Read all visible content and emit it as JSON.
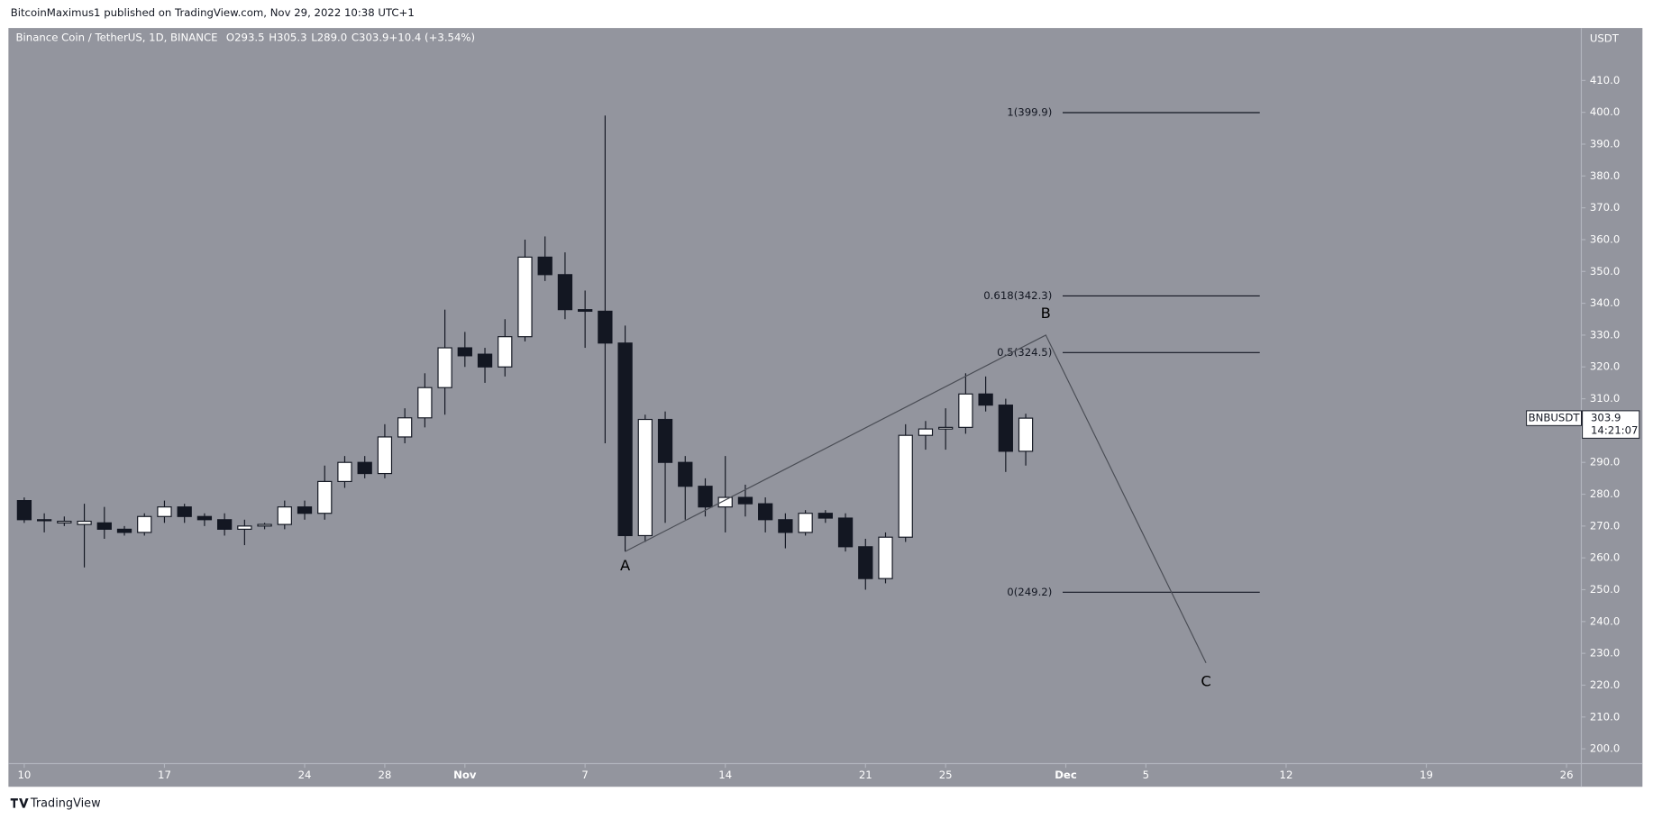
{
  "header": {
    "published": "BitcoinMaximus1 published on TradingView.com, Nov 29, 2022 10:38 UTC+1"
  },
  "footer": {
    "brand": "TradingView"
  },
  "chart_data": {
    "type": "candlestick",
    "title": "Binance Coin / TetherUS, 1D, BINANCE",
    "ohlc_legend": [
      {
        "key": "O",
        "value": "293.5"
      },
      {
        "key": "H",
        "value": "305.3"
      },
      {
        "key": "L",
        "value": "289.0"
      },
      {
        "key": "C",
        "value": "303.9"
      },
      {
        "key": "",
        "value": "+10.4 (+3.54%)"
      }
    ],
    "y_unit": "USDT",
    "up_color": "#ffffff",
    "down_color": "#131722",
    "wick_color": "#131722",
    "background": "#93959e",
    "x": [
      "2022-10-10",
      "2022-10-11",
      "2022-10-12",
      "2022-10-13",
      "2022-10-14",
      "2022-10-15",
      "2022-10-16",
      "2022-10-17",
      "2022-10-18",
      "2022-10-19",
      "2022-10-20",
      "2022-10-21",
      "2022-10-22",
      "2022-10-23",
      "2022-10-24",
      "2022-10-25",
      "2022-10-26",
      "2022-10-27",
      "2022-10-28",
      "2022-10-29",
      "2022-10-30",
      "2022-10-31",
      "2022-11-01",
      "2022-11-02",
      "2022-11-03",
      "2022-11-04",
      "2022-11-05",
      "2022-11-06",
      "2022-11-07",
      "2022-11-08",
      "2022-11-09",
      "2022-11-10",
      "2022-11-11",
      "2022-11-12",
      "2022-11-13",
      "2022-11-14",
      "2022-11-15",
      "2022-11-16",
      "2022-11-17",
      "2022-11-18",
      "2022-11-19",
      "2022-11-20",
      "2022-11-21",
      "2022-11-22",
      "2022-11-23",
      "2022-11-24",
      "2022-11-25",
      "2022-11-26",
      "2022-11-27",
      "2022-11-28",
      "2022-11-29"
    ],
    "open": [
      278,
      272,
      271,
      270.5,
      271,
      269,
      268,
      273,
      276,
      273,
      272,
      269,
      270,
      270.5,
      276,
      274,
      284,
      290,
      286.5,
      298,
      304,
      313.5,
      326,
      324,
      320,
      329.5,
      354.5,
      349,
      338,
      337.5,
      327.5,
      267,
      303.5,
      290,
      282.5,
      276,
      279,
      277,
      272,
      268,
      274,
      272.5,
      263.5,
      253.5,
      266.5,
      298.5,
      300.5,
      301,
      311.5,
      308,
      293.5
    ],
    "high": [
      279,
      274,
      273,
      277,
      276,
      270,
      274,
      278,
      277,
      274,
      274,
      272,
      271,
      278,
      278,
      289,
      292,
      292,
      302,
      307,
      318,
      338,
      331,
      326,
      335,
      360,
      361,
      356,
      344,
      399,
      333,
      305,
      306,
      292,
      285,
      292,
      283,
      279,
      274,
      275,
      275,
      274,
      266,
      268,
      302,
      303,
      307,
      318,
      317,
      310,
      305.3
    ],
    "low": [
      271,
      268,
      270,
      257,
      266,
      267,
      267,
      271,
      271,
      270,
      267,
      264,
      269,
      269,
      272,
      272,
      282,
      285,
      285,
      296,
      301,
      305,
      320,
      315,
      317,
      328,
      347,
      335,
      326,
      296,
      262,
      265,
      271,
      272,
      273,
      268,
      273,
      268,
      263,
      267,
      271,
      262,
      250,
      252,
      265,
      294,
      294,
      299,
      306,
      287,
      289.0
    ],
    "close": [
      272,
      272,
      271.5,
      271.5,
      269,
      268,
      273,
      276,
      273,
      272,
      269,
      270,
      270.5,
      276,
      274,
      284,
      290,
      286.5,
      298,
      304,
      313.5,
      326,
      323.5,
      320,
      329.5,
      354.5,
      349,
      338,
      337.5,
      327.5,
      267,
      303.5,
      290,
      282.5,
      276,
      279,
      277,
      272,
      268,
      274,
      272.5,
      263.5,
      253.5,
      266.5,
      298.5,
      300.5,
      301,
      311.5,
      308,
      293.5,
      303.9
    ],
    "xlim": [
      "2022-10-09",
      "2022-12-27"
    ],
    "xticks": [
      {
        "value": "2022-10-10",
        "label": "10"
      },
      {
        "value": "2022-10-17",
        "label": "17"
      },
      {
        "value": "2022-10-24",
        "label": "24"
      },
      {
        "value": "2022-10-28",
        "label": "28"
      },
      {
        "value": "2022-11-01",
        "label": "Nov"
      },
      {
        "value": "2022-11-07",
        "label": "7"
      },
      {
        "value": "2022-11-14",
        "label": "14"
      },
      {
        "value": "2022-11-21",
        "label": "21"
      },
      {
        "value": "2022-11-25",
        "label": "25"
      },
      {
        "value": "2022-12-01",
        "label": "Dec"
      },
      {
        "value": "2022-12-05",
        "label": "5"
      },
      {
        "value": "2022-12-12",
        "label": "12"
      },
      {
        "value": "2022-12-19",
        "label": "19"
      },
      {
        "value": "2022-12-26",
        "label": "26"
      }
    ],
    "ylim": [
      195.36,
      425.83
    ],
    "yticks": [
      {
        "value": 200,
        "label": "200.0"
      },
      {
        "value": 210,
        "label": "210.0"
      },
      {
        "value": 220,
        "label": "220.0"
      },
      {
        "value": 230,
        "label": "230.0"
      },
      {
        "value": 240,
        "label": "240.0"
      },
      {
        "value": 250,
        "label": "250.0"
      },
      {
        "value": 260,
        "label": "260.0"
      },
      {
        "value": 270,
        "label": "270.0"
      },
      {
        "value": 280,
        "label": "280.0"
      },
      {
        "value": 290,
        "label": "290.0"
      },
      {
        "value": 300,
        "label": "300.0"
      },
      {
        "value": 310,
        "label": "310.0"
      },
      {
        "value": 320,
        "label": "320.0"
      },
      {
        "value": 330,
        "label": "330.0"
      },
      {
        "value": 340,
        "label": "340.0"
      },
      {
        "value": 350,
        "label": "350.0"
      },
      {
        "value": 360,
        "label": "360.0"
      },
      {
        "value": 370,
        "label": "370.0"
      },
      {
        "value": 380,
        "label": "380.0"
      },
      {
        "value": 390,
        "label": "390.0"
      },
      {
        "value": 400,
        "label": "400.0"
      },
      {
        "value": 410,
        "label": "410.0"
      }
    ],
    "fib_levels": [
      {
        "label": "1(399.9)",
        "value": 399.9
      },
      {
        "label": "0.618(342.3)",
        "value": 342.3
      },
      {
        "label": "0.5(324.5)",
        "value": 324.5
      },
      {
        "label": "0(249.2)",
        "value": 249.2
      }
    ],
    "waves": [
      {
        "label": "A",
        "x": "2022-11-09",
        "value": 262
      },
      {
        "label": "B",
        "x": "2022-11-30",
        "value": 330
      },
      {
        "label": "C",
        "x": "2022-12-08",
        "value": 227
      }
    ],
    "price_tag": {
      "symbol": "BNBUSDT",
      "value": 303.9,
      "countdown": "14:21:07"
    }
  }
}
